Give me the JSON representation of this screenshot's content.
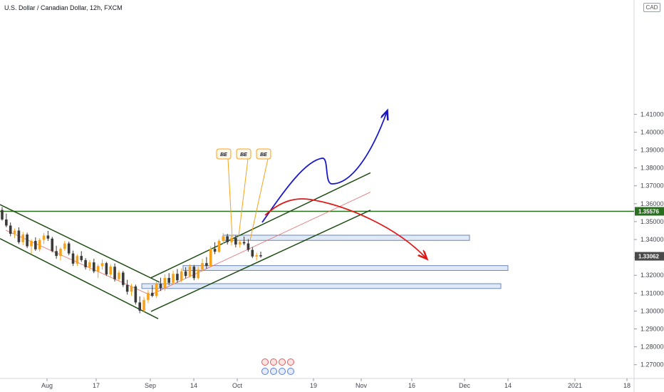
{
  "header": {
    "title": "U.S. Dollar / Canadian Dollar, 12h, FXCM"
  },
  "currency_button": "CAD",
  "chart_data": {
    "type": "candlestick",
    "title": "U.S. Dollar / Canadian Dollar, 12h, FXCM",
    "ylim": [
      1.2655,
      1.4715
    ],
    "y_ticks": [
      "1.27000",
      "1.28000",
      "1.29000",
      "1.30000",
      "1.31000",
      "1.32000",
      "1.33000",
      "1.34000",
      "1.35000",
      "1.36000",
      "1.37000",
      "1.38000",
      "1.39000",
      "1.40000",
      "1.41000"
    ],
    "x_ticks": [
      "Aug",
      "17",
      "Sep",
      "14",
      "Oct",
      "19",
      "Nov",
      "16",
      "Dec",
      "14",
      "2021",
      "18"
    ],
    "price_tags": [
      {
        "label": "1.35576",
        "value": 1.35576,
        "color": "#2a6f1f"
      },
      {
        "label": "1.33062",
        "value": 1.33062,
        "color": "#4a4a4a"
      }
    ],
    "annotations": [
      "BE",
      "BE",
      "BE"
    ],
    "horizontal_line": 1.35576,
    "zones": [
      {
        "y_top": 1.3424,
        "y_bottom": 1.3395
      },
      {
        "y_top": 1.3254,
        "y_bottom": 1.3227
      },
      {
        "y_top": 1.3153,
        "y_bottom": 1.3126
      }
    ],
    "candles": [
      [
        1.3565,
        1.3582,
        1.3505,
        1.3512
      ],
      [
        1.3512,
        1.3545,
        1.3468,
        1.3478
      ],
      [
        1.3478,
        1.3495,
        1.3418,
        1.3432
      ],
      [
        1.3432,
        1.3462,
        1.3408,
        1.345
      ],
      [
        1.345,
        1.3468,
        1.3375,
        1.3385
      ],
      [
        1.3385,
        1.3442,
        1.3368,
        1.3428
      ],
      [
        1.3428,
        1.3438,
        1.3352,
        1.3362
      ],
      [
        1.3362,
        1.3402,
        1.3318,
        1.3392
      ],
      [
        1.3392,
        1.3412,
        1.3336,
        1.3345
      ],
      [
        1.3345,
        1.3408,
        1.3332,
        1.3398
      ],
      [
        1.3398,
        1.3436,
        1.3375,
        1.3422
      ],
      [
        1.3422,
        1.3448,
        1.3392,
        1.3405
      ],
      [
        1.3405,
        1.3415,
        1.3328,
        1.3335
      ],
      [
        1.3335,
        1.3365,
        1.3292,
        1.3308
      ],
      [
        1.3308,
        1.3356,
        1.3282,
        1.3348
      ],
      [
        1.3348,
        1.3392,
        1.3336,
        1.3378
      ],
      [
        1.3378,
        1.3388,
        1.3312,
        1.3322
      ],
      [
        1.3322,
        1.3338,
        1.3252,
        1.3265
      ],
      [
        1.3265,
        1.3318,
        1.3252,
        1.3308
      ],
      [
        1.3308,
        1.3335,
        1.3275,
        1.3285
      ],
      [
        1.3285,
        1.3296,
        1.3232,
        1.3245
      ],
      [
        1.3245,
        1.3285,
        1.3225,
        1.3272
      ],
      [
        1.3272,
        1.3292,
        1.3212,
        1.3222
      ],
      [
        1.3222,
        1.3262,
        1.3185,
        1.3252
      ],
      [
        1.3252,
        1.3288,
        1.3232,
        1.3268
      ],
      [
        1.3268,
        1.3275,
        1.3196,
        1.3205
      ],
      [
        1.3205,
        1.3262,
        1.3192,
        1.3248
      ],
      [
        1.3248,
        1.3266,
        1.3165,
        1.3178
      ],
      [
        1.3178,
        1.3228,
        1.3166,
        1.3215
      ],
      [
        1.3215,
        1.3225,
        1.3135,
        1.3146
      ],
      [
        1.3146,
        1.3175,
        1.3092,
        1.3108
      ],
      [
        1.3108,
        1.3152,
        1.3086,
        1.3138
      ],
      [
        1.3138,
        1.3148,
        1.3036,
        1.3048
      ],
      [
        1.3048,
        1.3082,
        1.2988,
        1.3002
      ],
      [
        1.3002,
        1.3078,
        1.2995,
        1.3062
      ],
      [
        1.3062,
        1.3118,
        1.3045,
        1.3102
      ],
      [
        1.3102,
        1.3145,
        1.3078,
        1.3085
      ],
      [
        1.3085,
        1.3165,
        1.3072,
        1.3152
      ],
      [
        1.3152,
        1.3186,
        1.3112,
        1.3128
      ],
      [
        1.3128,
        1.3205,
        1.3112,
        1.3185
      ],
      [
        1.3185,
        1.3212,
        1.3145,
        1.3158
      ],
      [
        1.3158,
        1.3226,
        1.3146,
        1.3208
      ],
      [
        1.3208,
        1.3235,
        1.3158,
        1.3172
      ],
      [
        1.3172,
        1.3238,
        1.3162,
        1.3222
      ],
      [
        1.3222,
        1.3245,
        1.3182,
        1.3196
      ],
      [
        1.3196,
        1.3262,
        1.3188,
        1.3248
      ],
      [
        1.3248,
        1.3258,
        1.3172,
        1.3184
      ],
      [
        1.3184,
        1.3248,
        1.3176,
        1.3232
      ],
      [
        1.3232,
        1.3292,
        1.3222,
        1.3268
      ],
      [
        1.3268,
        1.3302,
        1.3236,
        1.3252
      ],
      [
        1.3252,
        1.3362,
        1.3245,
        1.3348
      ],
      [
        1.3348,
        1.3385,
        1.3318,
        1.3332
      ],
      [
        1.3332,
        1.3402,
        1.3325,
        1.3392
      ],
      [
        1.3392,
        1.3436,
        1.3376,
        1.3418
      ],
      [
        1.3418,
        1.3432,
        1.3372,
        1.3385
      ],
      [
        1.3385,
        1.3426,
        1.3366,
        1.3408
      ],
      [
        1.3408,
        1.3422,
        1.3356,
        1.3372
      ],
      [
        1.3372,
        1.3398,
        1.3355,
        1.3386
      ],
      [
        1.3386,
        1.3416,
        1.3368,
        1.3378
      ],
      [
        1.3378,
        1.3402,
        1.3332,
        1.3342
      ],
      [
        1.3342,
        1.3358,
        1.3296,
        1.3305
      ],
      [
        1.3305,
        1.3326,
        1.3282,
        1.3312
      ],
      [
        1.3312,
        1.3332,
        1.3298,
        1.3306
      ]
    ]
  }
}
